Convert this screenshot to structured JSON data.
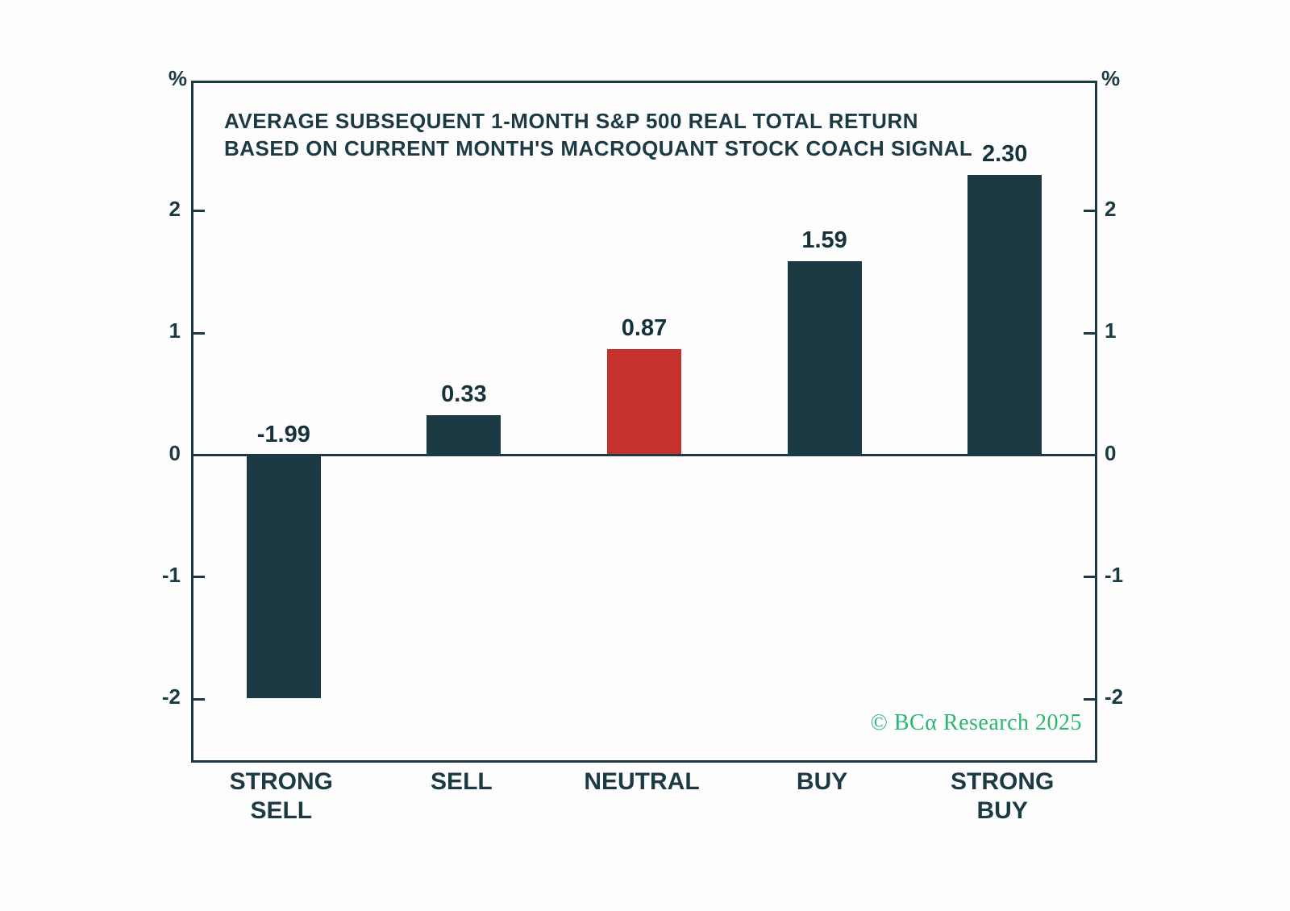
{
  "chart_data": {
    "type": "bar",
    "title_lines": [
      "AVERAGE SUBSEQUENT 1-MONTH S&P 500 REAL TOTAL RETURN",
      "BASED ON CURRENT MONTH'S MACROQUANT STOCK COACH SIGNAL"
    ],
    "categories": [
      "STRONG\nSELL",
      "SELL",
      "NEUTRAL",
      "BUY",
      "STRONG\nBUY"
    ],
    "values": [
      -1.99,
      0.33,
      0.87,
      1.59,
      2.3
    ],
    "value_labels": [
      "-1.99",
      "0.33",
      "0.87",
      "1.59",
      "2.30"
    ],
    "bar_colors": [
      "#1c3a43",
      "#1c3a43",
      "#c5322d",
      "#1c3a43",
      "#1c3a43"
    ],
    "ylim": [
      -2.5,
      3.05
    ],
    "yticks": [
      2,
      1,
      0,
      -1,
      -2
    ],
    "ytick_labels": [
      "2",
      "1",
      "0",
      "-1",
      "-2"
    ],
    "y_unit": "%",
    "grid": "off",
    "legend_position": "none",
    "watermark": "© BCα Research 2025",
    "colors": {
      "bar_dark": "#1c3a43",
      "bar_red": "#c5322d",
      "axis": "#1c3a43",
      "value_text": "#15313a",
      "watermark_green": "#2bb673",
      "background": "#fdfdfd"
    }
  }
}
